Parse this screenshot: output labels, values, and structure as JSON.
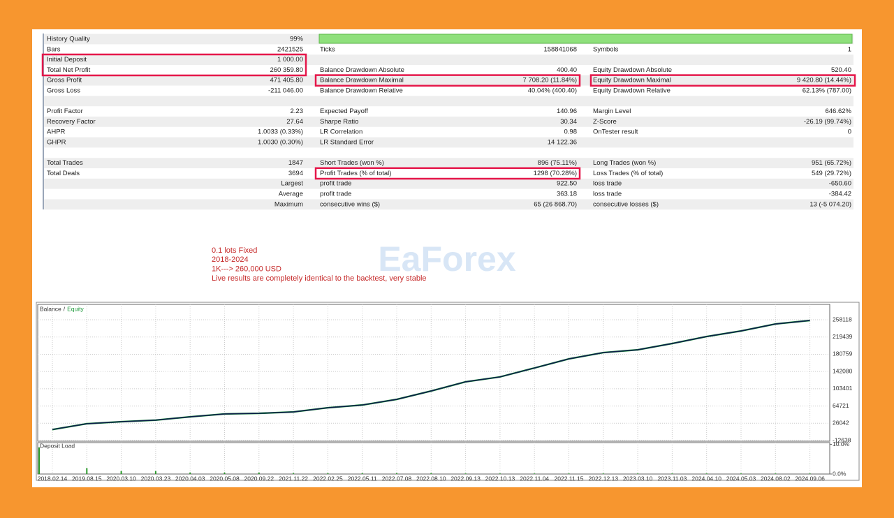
{
  "report": {
    "rows": [
      {
        "left": {
          "label": "History Quality",
          "value": "99%"
        }
      },
      {
        "left": {
          "label": "Bars",
          "value": "2421525"
        },
        "middle": {
          "label": "Ticks",
          "value": "158841068"
        },
        "right": {
          "label": "Symbols",
          "value": "1"
        }
      },
      {
        "left": {
          "label": "Initial Deposit",
          "value": "1 000.00"
        }
      },
      {
        "left": {
          "label": "Total Net Profit",
          "value": "260 359.80"
        },
        "middle": {
          "label": "Balance Drawdown Absolute",
          "value": "400.40"
        },
        "right": {
          "label": "Equity Drawdown Absolute",
          "value": "520.40"
        }
      },
      {
        "left": {
          "label": "Gross Profit",
          "value": "471 405.80"
        },
        "middle": {
          "label": "Balance Drawdown Maximal",
          "value": "7 708.20 (11.84%)"
        },
        "right": {
          "label": "Equity Drawdown Maximal",
          "value": "9 420.80 (14.44%)"
        }
      },
      {
        "left": {
          "label": "Gross Loss",
          "value": "-211 046.00"
        },
        "middle": {
          "label": "Balance Drawdown Relative",
          "value": "40.04% (400.40)"
        },
        "right": {
          "label": "Equity Drawdown Relative",
          "value": "62.13% (787.00)"
        }
      },
      {},
      {
        "left": {
          "label": "Profit Factor",
          "value": "2.23"
        },
        "middle": {
          "label": "Expected Payoff",
          "value": "140.96"
        },
        "right": {
          "label": "Margin Level",
          "value": "646.62%"
        }
      },
      {
        "left": {
          "label": "Recovery Factor",
          "value": "27.64"
        },
        "middle": {
          "label": "Sharpe Ratio",
          "value": "30.34"
        },
        "right": {
          "label": "Z-Score",
          "value": "-26.19 (99.74%)"
        }
      },
      {
        "left": {
          "label": "AHPR",
          "value": "1.0033 (0.33%)"
        },
        "middle": {
          "label": "LR Correlation",
          "value": "0.98"
        },
        "right": {
          "label": "OnTester result",
          "value": "0"
        }
      },
      {
        "left": {
          "label": "GHPR",
          "value": "1.0030 (0.30%)"
        },
        "middle": {
          "label": "LR Standard Error",
          "value": "14 122.36"
        }
      },
      {},
      {
        "left": {
          "label": "Total Trades",
          "value": "1847"
        },
        "middle": {
          "label": "Short Trades (won %)",
          "value": "896 (75.11%)"
        },
        "right": {
          "label": "Long Trades (won %)",
          "value": "951 (65.72%)"
        }
      },
      {
        "left": {
          "label": "Total Deals",
          "value": "3694"
        },
        "middle": {
          "label": "Profit Trades (% of total)",
          "value": "1298 (70.28%)"
        },
        "right": {
          "label": "Loss Trades (% of total)",
          "value": "549 (29.72%)"
        }
      },
      {
        "left": {
          "value": "Largest"
        },
        "middle": {
          "label": "profit trade",
          "value": "922.50"
        },
        "right": {
          "label": "loss trade",
          "value": "-650.60"
        }
      },
      {
        "left": {
          "value": "Average"
        },
        "middle": {
          "label": "profit trade",
          "value": "363.18"
        },
        "right": {
          "label": "loss trade",
          "value": "-384.42"
        }
      },
      {
        "left": {
          "value": "Maximum"
        },
        "middle": {
          "label": "consecutive wins ($)",
          "value": "65 (26 868.70)"
        },
        "right": {
          "label": "consecutive losses ($)",
          "value": "13 (-5 074.20)"
        }
      }
    ]
  },
  "annotation": {
    "lines": [
      "0.1 lots Fixed",
      "2018-2024",
      "1K---> 260,000 USD",
      "Live results are completely identical to the backtest, very stable"
    ]
  },
  "watermark": "EaForex",
  "chart_data": {
    "type": "line",
    "legend_separator": "/",
    "categories": [
      "2018.02.14",
      "2019.08.15",
      "2020.03.10",
      "2020.03.23",
      "2020.04.03",
      "2020.05.08",
      "2020.09.22",
      "2021.11.22",
      "2022.02.25",
      "2022.05.11",
      "2022.07.08",
      "2022.08.10",
      "2022.09.13",
      "2022.10.13",
      "2022.11.04",
      "2022.11.15",
      "2022.12.13",
      "2023.03.10",
      "2023.11.03",
      "2024.04.10",
      "2024.05.03",
      "2024.08.02",
      "2024.09.06"
    ],
    "series": [
      {
        "name": "Balance",
        "color": "#0d1d4a",
        "values": [
          12000,
          25000,
          29500,
          33000,
          40500,
          47000,
          48300,
          51400,
          60800,
          67000,
          79600,
          98400,
          119000,
          130000,
          150000,
          170400,
          184500,
          190800,
          204900,
          220500,
          233000,
          248700,
          256500
        ]
      },
      {
        "name": "Equity",
        "color": "#1f9a3c",
        "values": [
          12000,
          25000,
          29500,
          33000,
          40500,
          47000,
          48300,
          51400,
          60800,
          67000,
          79600,
          98400,
          119000,
          130000,
          150000,
          170400,
          184500,
          190800,
          204900,
          220500,
          233000,
          248700,
          256500
        ]
      }
    ],
    "ylim": [
      -14200,
      292600
    ],
    "yticks": [
      -12638,
      26042,
      64721,
      103401,
      142080,
      180759,
      219439,
      258118
    ],
    "grid": true,
    "deposit_load": {
      "title": "Deposit Load",
      "color": "#2a9a2a",
      "values": [
        9,
        2,
        1,
        1,
        0.5,
        0.5,
        0.5,
        0.3,
        0.3,
        0.3,
        0.3,
        0.3,
        0.2,
        0.2,
        0.2,
        0.2,
        0.2,
        0.2,
        0.2,
        0.2,
        0.2,
        0.2,
        0.2
      ],
      "ylim": [
        0,
        10.6
      ],
      "yticks": [
        {
          "value": 0,
          "label": "0.0%"
        },
        {
          "value": 10,
          "label": "10.0%"
        }
      ]
    }
  }
}
